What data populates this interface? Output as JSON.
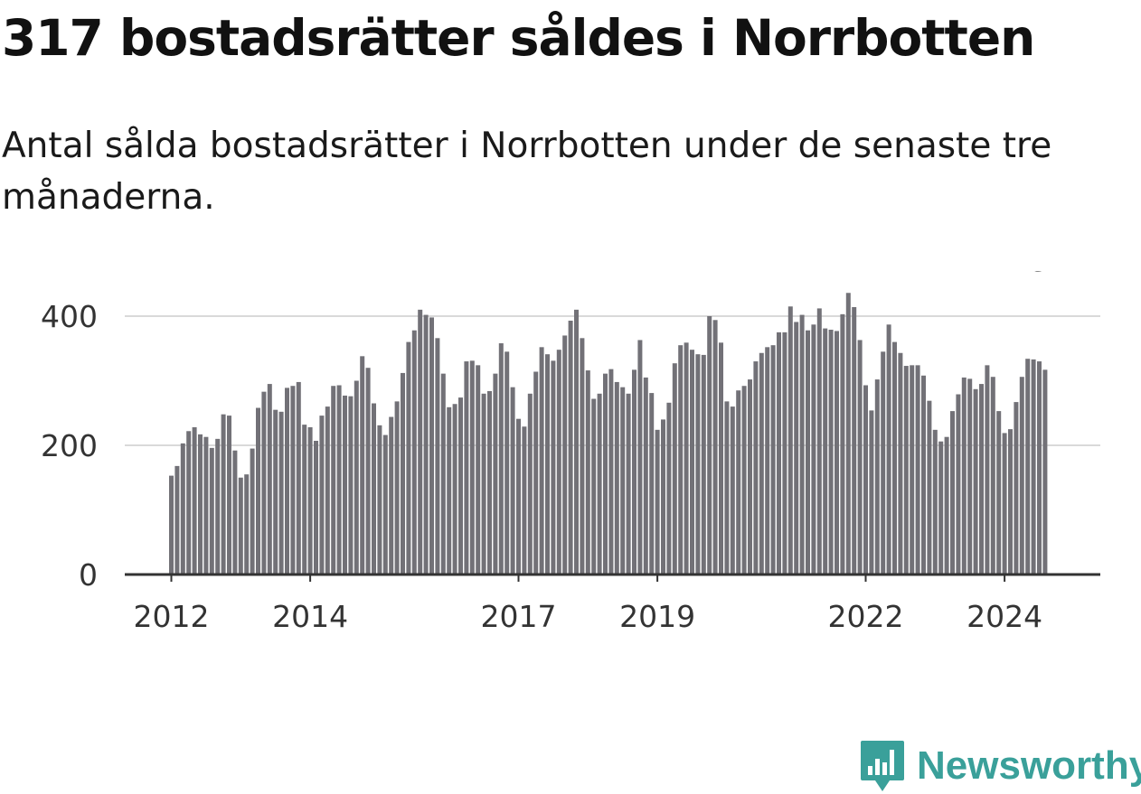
{
  "header": {
    "title": "317 bostadsrätter såldes i Norrbotten",
    "subtitle": "Antal sålda bostadsrätter i Norrbotten under de senaste tre månaderna."
  },
  "chart_data": {
    "type": "bar",
    "title": "317 bostadsrätter såldes i Norrbotten",
    "subtitle": "Antal sålda bostadsrätter i Norrbotten under de senaste tre månaderna.",
    "xlabel": "",
    "ylabel": "",
    "ylim": [
      0,
      450
    ],
    "yticks": [
      0,
      200,
      400
    ],
    "ytick_labels": [
      "0",
      "200",
      "400"
    ],
    "first_period": "2012-01",
    "xticks": [
      {
        "index": 0,
        "label": "2012"
      },
      {
        "index": 24,
        "label": "2014"
      },
      {
        "index": 60,
        "label": "2017"
      },
      {
        "index": 84,
        "label": "2019"
      },
      {
        "index": 120,
        "label": "2022"
      },
      {
        "index": 144,
        "label": "2024"
      }
    ],
    "values": [
      153,
      168,
      203,
      222,
      228,
      217,
      213,
      196,
      210,
      248,
      246,
      192,
      150,
      155,
      195,
      258,
      283,
      295,
      255,
      252,
      289,
      292,
      298,
      232,
      228,
      207,
      246,
      260,
      292,
      293,
      277,
      276,
      300,
      338,
      320,
      265,
      231,
      216,
      244,
      268,
      312,
      360,
      378,
      410,
      402,
      398,
      366,
      311,
      259,
      264,
      274,
      330,
      331,
      324,
      280,
      284,
      311,
      358,
      345,
      290,
      241,
      229,
      280,
      314,
      352,
      341,
      331,
      348,
      370,
      393,
      410,
      366,
      316,
      272,
      280,
      311,
      318,
      298,
      290,
      280,
      317,
      363,
      305,
      281,
      224,
      240,
      266,
      327,
      355,
      359,
      348,
      341,
      340,
      400,
      394,
      359,
      268,
      260,
      285,
      292,
      302,
      330,
      343,
      352,
      355,
      375,
      375,
      415,
      391,
      402,
      378,
      387,
      412,
      381,
      379,
      377,
      403,
      436,
      414,
      363,
      293,
      254,
      302,
      345,
      387,
      360,
      343,
      323,
      324,
      324,
      308,
      269,
      224,
      206,
      213,
      253,
      279,
      305,
      303,
      287,
      295,
      324,
      306,
      253,
      219,
      225,
      267,
      306,
      334,
      333,
      330,
      317
    ],
    "highlight_index": 153,
    "highlight_label": "317",
    "colors": {
      "bar": "#727177",
      "highlight": "#1ba4a0",
      "grid": "#d9d9d9",
      "axis": "#333333",
      "text": "#333333"
    }
  },
  "branding": {
    "logo_text": "Newsworthy",
    "logo_icon": "bar-chart-speech-bubble-icon",
    "logo_color": "#3aa09a"
  }
}
